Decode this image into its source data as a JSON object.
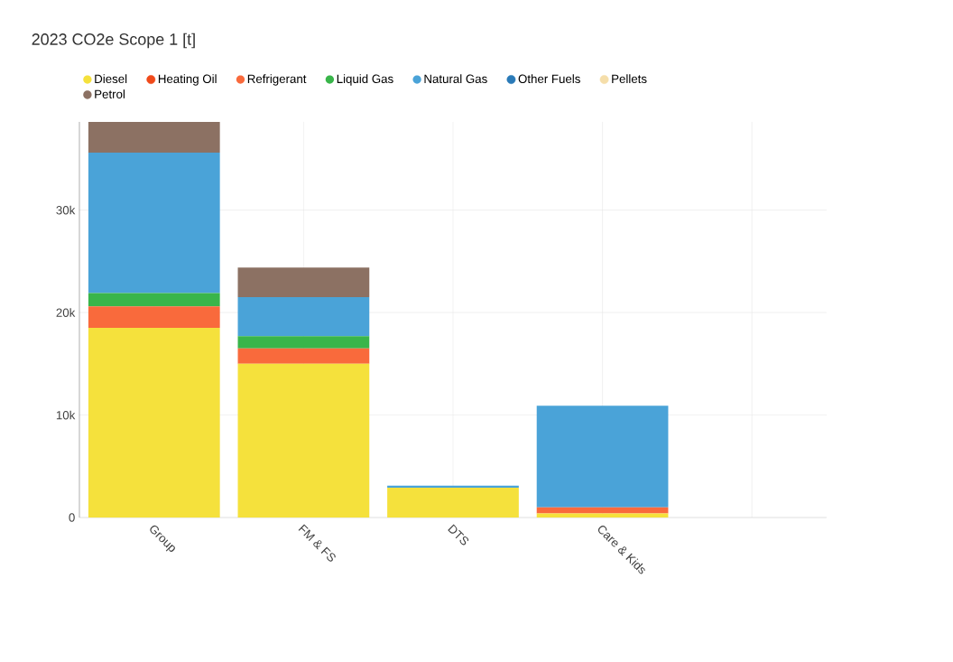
{
  "chart_data": {
    "type": "bar",
    "title": "2023 CO2e Scope 1 [t]",
    "stacked": true,
    "grid": true,
    "legend": "top left",
    "categories": [
      "Group",
      "FM & FS",
      "DTS",
      "Care & Kids",
      null
    ],
    "ylim": [
      0,
      38600
    ],
    "yticks": [
      0,
      {
        "value": 10000,
        "label": "10k"
      },
      {
        "value": 20000,
        "label": "20k"
      },
      {
        "value": 30000,
        "label": "30k"
      }
    ],
    "series": [
      {
        "name": "Diesel",
        "color": "#f5e13c",
        "values": [
          18500,
          15000,
          2900,
          400,
          0
        ]
      },
      {
        "name": "Heating Oil",
        "color": "#f04a1a",
        "values": [
          null,
          null,
          null,
          null,
          null
        ]
      },
      {
        "name": "Refrigerant",
        "color": "#f96a3c",
        "values": [
          2100,
          1500,
          0,
          600,
          0
        ]
      },
      {
        "name": "Liquid Gas",
        "color": "#39b54a",
        "values": [
          1300,
          1200,
          0,
          0,
          0
        ]
      },
      {
        "name": "Natural Gas",
        "color": "#4aa3d8",
        "values": [
          13700,
          3800,
          200,
          9900,
          0
        ]
      },
      {
        "name": "Other Fuels",
        "color": "#2a7ab8",
        "values": [
          null,
          null,
          null,
          null,
          null
        ]
      },
      {
        "name": "Pellets",
        "color": "#f5deaa",
        "values": [
          null,
          null,
          null,
          null,
          null
        ]
      },
      {
        "name": "Petrol",
        "color": "#8c7163",
        "values": [
          3000,
          2900,
          0,
          0,
          0
        ]
      }
    ]
  }
}
